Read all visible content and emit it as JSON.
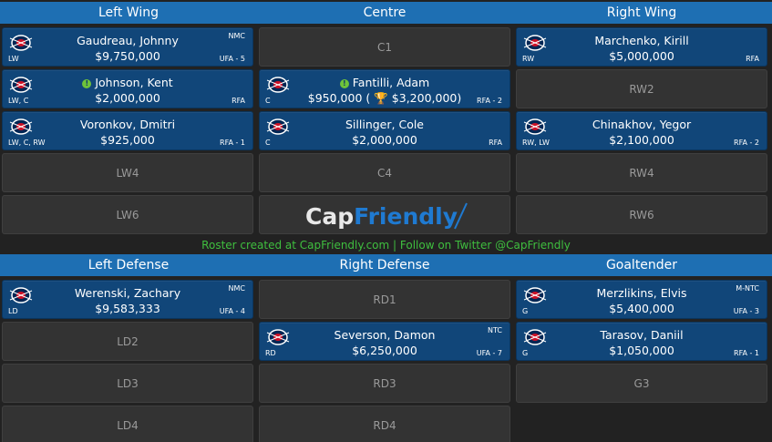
{
  "headers": {
    "forwards": [
      "Left Wing",
      "Centre",
      "Right Wing"
    ],
    "defense": [
      "Left Defense",
      "Right Defense",
      "Goaltender"
    ]
  },
  "cards": {
    "lw1": {
      "name": "Gaudreau, Johnny",
      "salary": "$9,750,000",
      "pos": "LW",
      "clause": "NMC",
      "status": "UFA - 5"
    },
    "lw2": {
      "name": "Johnson, Kent",
      "salary": "$2,000,000",
      "pos": "LW, C",
      "status": "RFA"
    },
    "lw3": {
      "name": "Voronkov, Dmitri",
      "salary": "$925,000",
      "pos": "LW, C, RW",
      "status": "RFA - 1"
    },
    "c2": {
      "name": "Fantilli, Adam",
      "salary": "$950,000 (",
      "bonus": "$3,200,000)",
      "pos": "C",
      "status": "RFA - 2"
    },
    "c3": {
      "name": "Sillinger, Cole",
      "salary": "$2,000,000",
      "pos": "C",
      "status": "RFA"
    },
    "rw1": {
      "name": "Marchenko, Kirill",
      "salary": "$5,000,000",
      "pos": "RW",
      "status": "RFA"
    },
    "rw3": {
      "name": "Chinakhov, Yegor",
      "salary": "$2,100,000",
      "pos": "RW, LW",
      "status": "RFA - 2"
    },
    "ld1": {
      "name": "Werenski, Zachary",
      "salary": "$9,583,333",
      "pos": "LD",
      "clause": "NMC",
      "status": "UFA - 4"
    },
    "rd2": {
      "name": "Severson, Damon",
      "salary": "$6,250,000",
      "pos": "RD",
      "clause": "NTC",
      "status": "UFA - 7"
    },
    "g1": {
      "name": "Merzlikins, Elvis",
      "salary": "$5,400,000",
      "pos": "G",
      "clause": "M-NTC",
      "status": "UFA - 3"
    },
    "g2": {
      "name": "Tarasov, Daniil",
      "salary": "$1,050,000",
      "pos": "G",
      "status": "RFA - 1"
    }
  },
  "empty_slots": {
    "c1": "C1",
    "rw2": "RW2",
    "lw4": "LW4",
    "c4": "C4",
    "rw4": "RW4",
    "lw6": "LW6",
    "rw6": "RW6",
    "rd1": "RD1",
    "ld2": "LD2",
    "ld3": "LD3",
    "rd3": "RD3",
    "g3": "G3",
    "ld4": "LD4",
    "rd4": "RD4"
  },
  "watermark": {
    "cap": "Cap",
    "friendly": "Friendly"
  },
  "footer": "Roster created at CapFriendly.com | Follow on Twitter @CapFriendly",
  "colors": {
    "header": "#1e6fb3",
    "card": "#114679",
    "empty": "#333333",
    "footer_text": "#3fbf3f"
  },
  "icons": {
    "team_logo": "blue-jackets-logo-icon",
    "info": "info-icon",
    "trophy": "trophy-icon"
  }
}
